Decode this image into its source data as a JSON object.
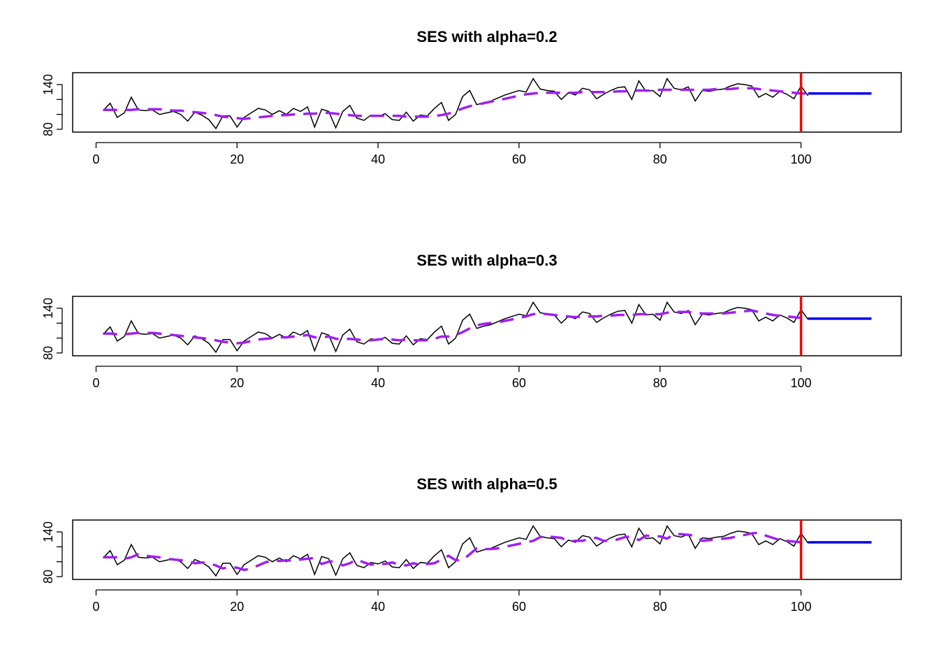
{
  "chart_data": [
    {
      "type": "line",
      "title": "SES with alpha=0.2",
      "alpha": 0.2,
      "xlim": [
        1,
        110
      ],
      "ylim": [
        78,
        150
      ],
      "x_ticks": [
        0,
        20,
        40,
        60,
        80,
        100
      ],
      "y_ticks": [
        80,
        100,
        120,
        140
      ],
      "y_tick_labels": [
        {
          "value": 80,
          "label": "80"
        },
        {
          "value": 140,
          "label": "140"
        }
      ],
      "series": [
        {
          "style": "solid-black",
          "x_start": 1,
          "values": [
            105,
            115,
            96,
            102,
            123,
            106,
            105,
            106,
            100,
            102,
            104,
            100,
            91,
            103,
            99,
            93,
            81,
            98,
            98,
            83,
            96,
            102,
            108,
            106,
            100,
            105,
            100,
            108,
            104,
            110,
            83,
            107,
            104,
            82,
            104,
            112,
            95,
            92,
            99,
            97,
            101,
            93,
            92,
            103,
            91,
            99,
            98,
            108,
            116,
            92,
            100,
            124,
            132,
            113,
            116,
            118,
            122,
            126,
            129,
            132,
            130,
            148,
            134,
            132,
            131,
            120,
            129,
            126,
            135,
            133,
            121,
            127,
            132,
            136,
            137,
            120,
            145,
            131,
            132,
            124,
            148,
            135,
            133,
            137,
            118,
            132,
            131,
            133,
            134,
            138,
            141,
            140,
            138,
            123,
            128,
            123,
            131,
            127,
            121,
            138,
            125
          ]
        },
        {
          "style": "dashed-purple",
          "x_start": 1,
          "values": [
            106,
            106,
            106,
            106,
            106,
            107,
            107,
            107,
            107,
            106,
            105,
            105,
            104,
            103,
            102,
            101,
            99,
            97,
            96,
            95,
            94,
            95,
            96,
            97,
            98,
            99,
            99,
            100,
            100,
            101,
            101,
            102,
            102,
            101,
            100,
            99,
            98,
            98,
            98,
            98,
            98,
            98,
            98,
            97,
            97,
            97,
            97,
            98,
            99,
            101,
            104,
            108,
            111,
            113,
            115,
            117,
            119,
            121,
            123,
            125,
            127,
            128,
            129,
            129,
            129,
            129,
            129,
            129,
            130,
            130,
            130,
            130,
            130,
            131,
            131,
            132,
            132,
            132,
            132,
            133,
            133,
            133,
            133,
            133,
            133,
            133,
            133,
            134,
            134,
            134,
            135,
            135,
            135,
            134,
            133,
            132,
            131,
            130,
            129,
            128,
            128
          ]
        },
        {
          "style": "solid-blue",
          "name": "forecast",
          "x": [
            101,
            110
          ],
          "values": [
            128,
            128
          ]
        }
      ],
      "cutoff_x": 100
    },
    {
      "type": "line",
      "title": "SES with alpha=0.3",
      "alpha": 0.3,
      "xlim": [
        1,
        110
      ],
      "ylim": [
        78,
        150
      ],
      "x_ticks": [
        0,
        20,
        40,
        60,
        80,
        100
      ],
      "y_ticks": [
        80,
        100,
        120,
        140
      ],
      "y_tick_labels": [
        {
          "value": 80,
          "label": "80"
        },
        {
          "value": 140,
          "label": "140"
        }
      ],
      "series": [
        {
          "style": "solid-black",
          "x_start": 1,
          "values": [
            105,
            115,
            96,
            102,
            123,
            106,
            105,
            106,
            100,
            102,
            104,
            100,
            91,
            103,
            99,
            93,
            81,
            98,
            98,
            83,
            96,
            102,
            108,
            106,
            100,
            105,
            100,
            108,
            104,
            110,
            83,
            107,
            104,
            82,
            104,
            112,
            95,
            92,
            99,
            97,
            101,
            93,
            92,
            103,
            91,
            99,
            98,
            108,
            116,
            92,
            100,
            124,
            132,
            113,
            116,
            118,
            122,
            126,
            129,
            132,
            130,
            148,
            134,
            132,
            131,
            120,
            129,
            126,
            135,
            133,
            121,
            127,
            132,
            136,
            137,
            120,
            145,
            131,
            132,
            124,
            148,
            135,
            133,
            137,
            118,
            132,
            131,
            133,
            134,
            138,
            141,
            140,
            138,
            123,
            128,
            123,
            131,
            127,
            121,
            138,
            125
          ]
        },
        {
          "style": "dashed-purple",
          "x_start": 1,
          "values": [
            106,
            106,
            105,
            105,
            106,
            107,
            107,
            107,
            106,
            105,
            104,
            103,
            102,
            101,
            100,
            99,
            97,
            95,
            94,
            93,
            94,
            96,
            98,
            99,
            100,
            101,
            101,
            102,
            103,
            104,
            101,
            101,
            102,
            99,
            98,
            99,
            98,
            97,
            97,
            98,
            99,
            98,
            97,
            98,
            97,
            97,
            97,
            99,
            102,
            102,
            104,
            108,
            113,
            117,
            119,
            120,
            121,
            123,
            125,
            127,
            129,
            132,
            133,
            132,
            131,
            130,
            129,
            128,
            129,
            129,
            129,
            130,
            130,
            131,
            131,
            131,
            132,
            132,
            132,
            132,
            134,
            135,
            135,
            135,
            134,
            133,
            133,
            133,
            133,
            134,
            135,
            136,
            137,
            135,
            133,
            131,
            130,
            129,
            128,
            127,
            126
          ]
        },
        {
          "style": "solid-blue",
          "name": "forecast",
          "x": [
            101,
            110
          ],
          "values": [
            126,
            126
          ]
        }
      ],
      "cutoff_x": 100
    },
    {
      "type": "line",
      "title": "SES with alpha=0.5",
      "alpha": 0.5,
      "xlim": [
        1,
        110
      ],
      "ylim": [
        78,
        150
      ],
      "x_ticks": [
        0,
        20,
        40,
        60,
        80,
        100
      ],
      "y_ticks": [
        80,
        100,
        120,
        140
      ],
      "y_tick_labels": [
        {
          "value": 80,
          "label": "80"
        },
        {
          "value": 140,
          "label": "140"
        }
      ],
      "series": [
        {
          "style": "solid-black",
          "x_start": 1,
          "values": [
            105,
            115,
            96,
            102,
            123,
            106,
            105,
            106,
            100,
            102,
            104,
            100,
            91,
            103,
            99,
            93,
            81,
            98,
            98,
            83,
            96,
            102,
            108,
            106,
            100,
            105,
            100,
            108,
            104,
            110,
            83,
            107,
            104,
            82,
            104,
            112,
            95,
            92,
            99,
            97,
            101,
            93,
            92,
            103,
            91,
            99,
            98,
            108,
            116,
            92,
            100,
            124,
            132,
            113,
            116,
            118,
            122,
            126,
            129,
            132,
            130,
            148,
            134,
            132,
            131,
            120,
            129,
            126,
            135,
            133,
            121,
            127,
            132,
            136,
            137,
            120,
            145,
            131,
            132,
            124,
            148,
            135,
            133,
            137,
            118,
            132,
            131,
            133,
            134,
            138,
            141,
            140,
            138,
            123,
            128,
            123,
            131,
            127,
            121,
            138,
            125
          ]
        },
        {
          "style": "dashed-purple",
          "x_start": 1,
          "values": [
            106,
            106,
            106,
            104,
            106,
            110,
            108,
            107,
            106,
            104,
            103,
            102,
            101,
            98,
            99,
            98,
            95,
            91,
            93,
            92,
            89,
            91,
            95,
            99,
            102,
            101,
            102,
            101,
            103,
            104,
            105,
            97,
            100,
            101,
            95,
            98,
            103,
            99,
            96,
            97,
            97,
            99,
            96,
            95,
            98,
            96,
            97,
            98,
            103,
            108,
            102,
            102,
            110,
            118,
            117,
            117,
            118,
            120,
            122,
            124,
            126,
            128,
            133,
            134,
            133,
            132,
            127,
            128,
            128,
            131,
            132,
            128,
            128,
            130,
            133,
            134,
            129,
            135,
            134,
            134,
            131,
            137,
            137,
            136,
            135,
            128,
            129,
            130,
            131,
            132,
            134,
            136,
            138,
            139,
            135,
            132,
            129,
            128,
            127,
            126,
            126
          ]
        },
        {
          "style": "solid-blue",
          "name": "forecast",
          "x": [
            101,
            110
          ],
          "values": [
            126,
            126
          ]
        }
      ],
      "cutoff_x": 100
    }
  ]
}
